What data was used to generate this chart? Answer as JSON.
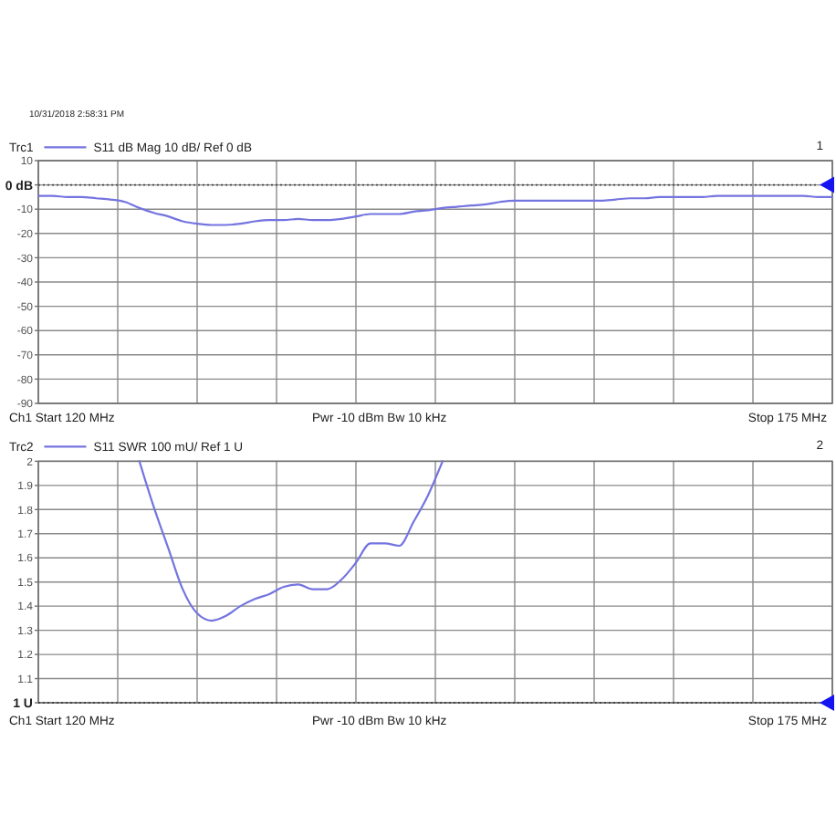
{
  "chart_data": [
    {
      "type": "line",
      "subtitle": "S11 dB Mag 10 dB/ Ref 0 dB",
      "annotations": [
        "Ch1 Start 120 MHz",
        "Pwr -10 dBm Bw 10 kHz",
        "Stop 175 MHz",
        "1",
        "10/31/2018 2:58:31 PM"
      ],
      "categories": [
        null,
        null,
        null,
        null,
        null,
        null,
        null,
        null,
        null,
        null,
        null,
        null,
        null,
        null,
        null,
        null,
        null,
        null,
        null,
        null,
        null,
        null,
        null,
        null,
        null,
        null,
        null,
        null,
        null,
        null,
        null,
        null,
        null,
        null,
        null,
        null,
        null,
        null,
        null,
        null,
        null,
        null,
        null,
        null,
        null,
        null,
        null,
        null,
        null,
        null,
        null,
        null,
        null,
        null,
        null,
        null
      ],
      "series": [
        {
          "name": "Trc1",
          "color": "#7474e0",
          "values": [
            -4.5,
            -4.5,
            -5,
            -5,
            -5.5,
            -6,
            -7,
            -9.5,
            -11.5,
            -13,
            -15,
            -16,
            -16.5,
            -16.5,
            -16,
            -15,
            -14.5,
            -14.5,
            -14,
            -14.5,
            -14.5,
            -14,
            -13,
            -12,
            -12,
            -12,
            -11,
            -10.5,
            -9.5,
            -9,
            -8.5,
            -8,
            -7,
            -6.5,
            -6.5,
            -6.5,
            -6.5,
            -6.5,
            -6.5,
            -6.5,
            -6,
            -5.5,
            -5.5,
            -5,
            -5,
            -5,
            -5,
            -4.5,
            -4.5,
            -4.5,
            -4.5,
            -4.5,
            -4.5,
            -4.5,
            -5,
            -5
          ]
        }
      ],
      "ylim": [
        -90,
        10
      ],
      "yticks": [
        10,
        {
          "value": 0,
          "label": "0 dB"
        },
        -10,
        -20,
        -30,
        -40,
        -50,
        -60,
        -70,
        -80,
        -90
      ],
      "grid": true,
      "legend": "top left",
      "tick_labels": "y",
      "ref_lines": [
        {
          "axis": "y",
          "value": 0,
          "color": "#444444",
          "line_style": "dotted"
        }
      ]
    },
    {
      "type": "line",
      "subtitle": "S11 SWR 100 mU/ Ref 1 U",
      "annotations": [
        "Ch1 Start 120 MHz",
        "Pwr -10 dBm Bw 10 kHz",
        "Stop 175 MHz",
        "2"
      ],
      "categories": [
        null,
        null,
        null,
        null,
        null,
        null,
        null,
        null,
        null,
        null,
        null,
        null,
        null,
        null,
        null,
        null,
        null,
        null,
        null,
        null,
        null,
        null,
        null,
        null,
        null,
        null,
        null,
        null,
        null,
        null,
        null,
        null,
        null,
        null,
        null,
        null,
        null,
        null,
        null,
        null,
        null,
        null,
        null,
        null,
        null,
        null,
        null,
        null,
        null,
        null,
        null,
        null,
        null,
        null,
        null,
        null
      ],
      "series": [
        {
          "name": "Trc2",
          "color": "#7474e0",
          "values": [
            null,
            null,
            null,
            null,
            null,
            null,
            null,
            2,
            1.81,
            1.64,
            1.47,
            1.37,
            1.34,
            1.36,
            1.4,
            1.43,
            1.45,
            1.48,
            1.49,
            1.47,
            1.47,
            1.51,
            1.58,
            1.66,
            1.66,
            1.65,
            1.75,
            1.86,
            2,
            null,
            null,
            null,
            null,
            null,
            null,
            null,
            null,
            null,
            null,
            null,
            null,
            null,
            null,
            null,
            null,
            null,
            null,
            null,
            null,
            null,
            null,
            null,
            null,
            null,
            null,
            null
          ]
        }
      ],
      "ylim": [
        1,
        2
      ],
      "yticks": [
        2,
        1.9,
        1.8,
        1.7,
        1.6,
        1.5,
        1.4,
        1.3,
        1.2,
        1.1,
        {
          "value": 1,
          "label": "1 U"
        }
      ],
      "grid": true,
      "legend": "top left",
      "tick_labels": "y",
      "ref_lines": [
        {
          "axis": "y",
          "value": 1,
          "color": "#444444",
          "line_style": "dotted"
        }
      ]
    }
  ]
}
